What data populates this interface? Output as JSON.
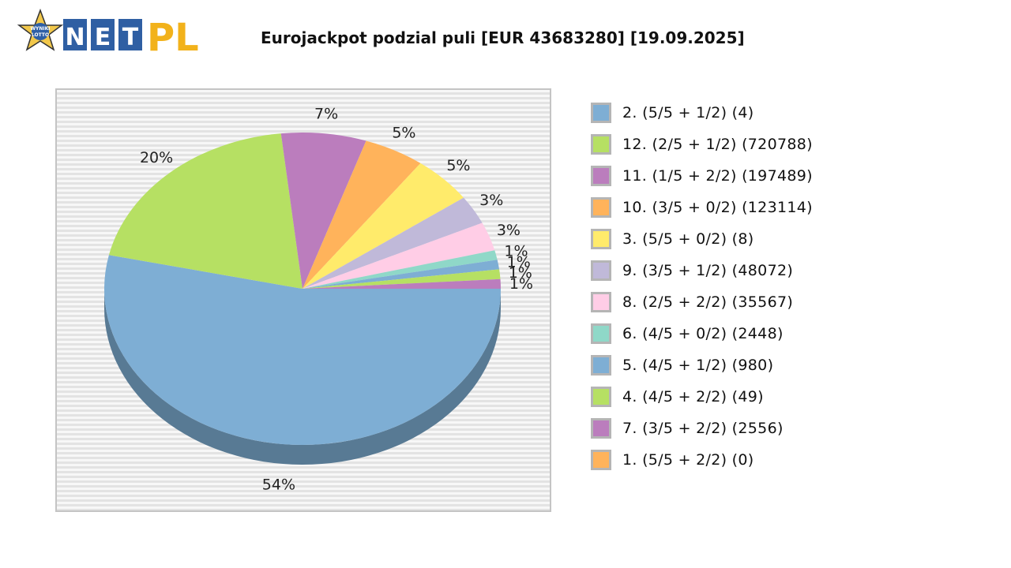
{
  "header": {
    "logo_star_text": [
      "WYNIKI",
      "LOTTO"
    ],
    "logo_letters": [
      "N",
      "E",
      "T"
    ],
    "logo_pl": "PL",
    "title": "Eurojackpot podzial puli [EUR 43683280] [19.09.2025]"
  },
  "chart_data": {
    "type": "pie",
    "title": "Eurojackpot podzial puli [EUR 43683280] [19.09.2025]",
    "grid": true,
    "legend_position": "right",
    "slices": [
      {
        "legend": "2. (5/5 + 1/2) (4)",
        "value": 54,
        "label": "54%",
        "color": "#7eaed4"
      },
      {
        "legend": "12. (2/5 + 1/2) (720788)",
        "value": 20,
        "label": "20%",
        "color": "#b6e063"
      },
      {
        "legend": "11. (1/5 + 2/2) (197489)",
        "value": 7,
        "label": "7%",
        "color": "#bb7dbd"
      },
      {
        "legend": "10. (3/5 + 0/2) (123114)",
        "value": 5,
        "label": "5%",
        "color": "#ffb35b"
      },
      {
        "legend": "3. (5/5 + 0/2) (8)",
        "value": 5,
        "label": "5%",
        "color": "#ffeb6b"
      },
      {
        "legend": "9. (3/5 + 1/2) (48072)",
        "value": 3,
        "label": "3%",
        "color": "#c0b9d9"
      },
      {
        "legend": "8. (2/5 + 2/2) (35567)",
        "value": 3,
        "label": "3%",
        "color": "#ffcde6"
      },
      {
        "legend": "6. (4/5 + 0/2) (2448)",
        "value": 1,
        "label": "1%",
        "color": "#8fd8c8"
      },
      {
        "legend": "5. (4/5 + 1/2) (980)",
        "value": 1,
        "label": "1%",
        "color": "#7eaed4"
      },
      {
        "legend": "4. (4/5 + 2/2) (49)",
        "value": 1,
        "label": "1%",
        "color": "#b6e063"
      },
      {
        "legend": "7. (3/5 + 2/2) (2556)",
        "value": 1,
        "label": "1%",
        "color": "#bb7dbd"
      },
      {
        "legend": "1. (5/5 + 2/2) (0)",
        "value": 0,
        "label": "",
        "color": "#ffb35b"
      }
    ]
  }
}
